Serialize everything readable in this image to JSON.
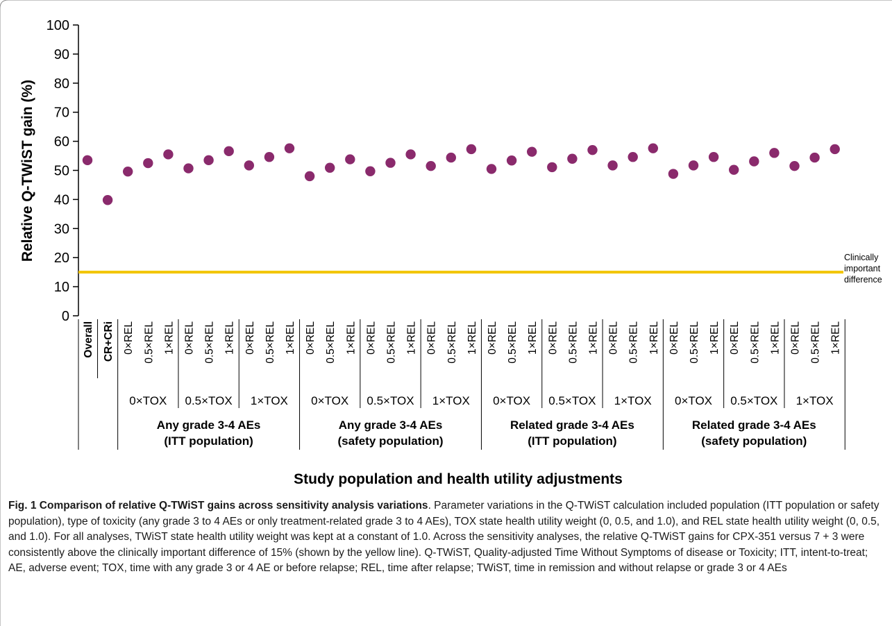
{
  "chart_data": {
    "type": "scatter",
    "ylabel": "Relative Q-TWiST gain (%)",
    "xlabel": "Study population and health utility adjustments",
    "ylim": [
      0,
      100
    ],
    "yticks": [
      0,
      10,
      20,
      30,
      40,
      50,
      60,
      70,
      80,
      90,
      100
    ],
    "grid": false,
    "marker_color": "#8a2a6c",
    "reference_line": {
      "value": 15,
      "color": "#f2c500",
      "label_lines": [
        "Clinically",
        "important",
        "difference"
      ]
    },
    "categories": [
      "Overall",
      "CR+CRi",
      "0×REL",
      "0.5×REL",
      "1×REL",
      "0×REL",
      "0.5×REL",
      "1×REL",
      "0×REL",
      "0.5×REL",
      "1×REL",
      "0×REL",
      "0.5×REL",
      "1×REL",
      "0×REL",
      "0.5×REL",
      "1×REL",
      "0×REL",
      "0.5×REL",
      "1×REL",
      "0×REL",
      "0.5×REL",
      "1×REL",
      "0×REL",
      "0.5×REL",
      "1×REL",
      "0×REL",
      "0.5×REL",
      "1×REL",
      "0×REL",
      "0.5×REL",
      "1×REL",
      "0×REL",
      "0.5×REL",
      "1×REL",
      "0×REL",
      "0.5×REL",
      "1×REL"
    ],
    "bold_categories": [
      "Overall",
      "CR+CRi"
    ],
    "values": [
      53.5,
      39.8,
      49.6,
      52.5,
      55.5,
      50.7,
      53.5,
      56.6,
      51.7,
      54.6,
      57.6,
      48.0,
      50.9,
      53.8,
      49.7,
      52.6,
      55.5,
      51.5,
      54.4,
      57.3,
      50.5,
      53.4,
      56.4,
      51.1,
      54.0,
      57.0,
      51.7,
      54.6,
      57.6,
      48.8,
      51.7,
      54.6,
      50.2,
      53.1,
      56.0,
      51.5,
      54.4,
      57.3
    ],
    "tox_groups": [
      {
        "label": "0×TOX",
        "start": 2,
        "end": 4
      },
      {
        "label": "0.5×TOX",
        "start": 5,
        "end": 7
      },
      {
        "label": "1×TOX",
        "start": 8,
        "end": 10
      },
      {
        "label": "0×TOX",
        "start": 11,
        "end": 13
      },
      {
        "label": "0.5×TOX",
        "start": 14,
        "end": 16
      },
      {
        "label": "1×TOX",
        "start": 17,
        "end": 19
      },
      {
        "label": "0×TOX",
        "start": 20,
        "end": 22
      },
      {
        "label": "0.5×TOX",
        "start": 23,
        "end": 25
      },
      {
        "label": "1×TOX",
        "start": 26,
        "end": 28
      },
      {
        "label": "0×TOX",
        "start": 29,
        "end": 31
      },
      {
        "label": "0.5×TOX",
        "start": 32,
        "end": 34
      },
      {
        "label": "1×TOX",
        "start": 35,
        "end": 37
      }
    ],
    "population_groups": [
      {
        "line1": "Any grade 3-4 AEs",
        "line2": "(ITT population)",
        "start": 2,
        "end": 10
      },
      {
        "line1": "Any grade 3-4 AEs",
        "line2": "(safety population)",
        "start": 11,
        "end": 19
      },
      {
        "line1": "Related grade 3-4 AEs",
        "line2": "(ITT population)",
        "start": 20,
        "end": 28
      },
      {
        "line1": "Related grade 3-4 AEs",
        "line2": "(safety population)",
        "start": 29,
        "end": 37
      }
    ]
  },
  "caption": {
    "lead": "Fig. 1  Comparison of relative Q-TWiST gains across sensitivity analysis variations",
    "body": ". Parameter variations in the Q-TWiST calculation included population (ITT population or safety population), type of toxicity (any grade 3 to 4 AEs or only treatment-related grade 3 to 4 AEs), TOX state health utility weight (0, 0.5, and 1.0), and REL state health utility weight (0, 0.5, and 1.0). For all analyses, TWiST state health utility weight was kept at a constant of 1.0. Across the sensitivity analyses, the relative Q-TWiST gains for CPX-351 versus 7 + 3 were consistently above the clinically important difference of 15% (shown by the yellow line). Q-TWiST, Quality-adjusted Time Without Symptoms of disease or Toxicity; ITT, intent-to-treat; AE, adverse event; TOX, time with any grade 3 or 4 AE or before relapse; REL, time after relapse; TWiST, time in remission and without relapse or grade 3 or 4 AEs"
  }
}
